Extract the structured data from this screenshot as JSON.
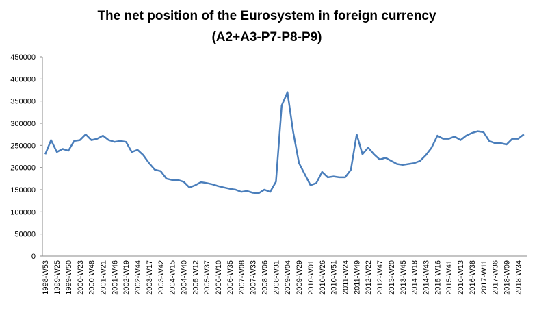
{
  "chart_data": {
    "type": "line",
    "title": "The net position of the Eurosystem in foreign currency",
    "subtitle": "(A2+A3-P7-P8-P9)",
    "categories": [
      "1998-W53",
      null,
      "1999-W25",
      null,
      "1999-W50",
      null,
      "2000-W23",
      null,
      "2000-W48",
      null,
      "2001-W21",
      null,
      "2001-W46",
      null,
      "2002-W19",
      null,
      "2002-W44",
      null,
      "2003-W17",
      null,
      "2003-W42",
      null,
      "2004-W15",
      null,
      "2004-W40",
      null,
      "2005-W12",
      null,
      "2005-W37",
      null,
      "2006-W10",
      null,
      "2006-W35",
      null,
      "2007-W08",
      null,
      "2007-W33",
      null,
      "2008-W06",
      null,
      "2008-W31",
      null,
      "2009-W04",
      null,
      "2009-W29",
      null,
      "2010-W01",
      null,
      "2010-W26",
      null,
      "2010-W51",
      null,
      "2011-W24",
      null,
      "2011-W49",
      null,
      "2012-W22",
      null,
      "2012-W47",
      null,
      "2013-W20",
      null,
      "2013-W45",
      null,
      "2014-W18",
      null,
      "2014-W43",
      null,
      "2015-W16",
      null,
      "2015-W41",
      null,
      "2016-W13",
      null,
      "2016-W38",
      null,
      "2017-W11",
      null,
      "2017-W36",
      null,
      "2018-W09",
      null,
      "2018-W34",
      null
    ],
    "values": [
      230000,
      262000,
      235000,
      242000,
      238000,
      260000,
      262000,
      275000,
      262000,
      265000,
      272000,
      262000,
      258000,
      260000,
      258000,
      235000,
      240000,
      228000,
      210000,
      195000,
      192000,
      175000,
      172000,
      172000,
      168000,
      155000,
      160000,
      167000,
      165000,
      162000,
      158000,
      155000,
      152000,
      150000,
      145000,
      147000,
      143000,
      142000,
      150000,
      145000,
      168000,
      340000,
      370000,
      280000,
      210000,
      185000,
      160000,
      165000,
      190000,
      178000,
      180000,
      178000,
      178000,
      195000,
      275000,
      230000,
      245000,
      230000,
      218000,
      222000,
      215000,
      208000,
      206000,
      208000,
      210000,
      215000,
      228000,
      245000,
      272000,
      265000,
      265000,
      270000,
      262000,
      272000,
      278000,
      282000,
      280000,
      260000,
      255000,
      255000,
      252000,
      265000,
      265000,
      275000
    ],
    "color": "#4a7ebb",
    "ylim": [
      0,
      450000
    ],
    "yticks": [
      0,
      50000,
      100000,
      150000,
      200000,
      250000,
      300000,
      350000,
      400000,
      450000
    ],
    "grid": false
  }
}
